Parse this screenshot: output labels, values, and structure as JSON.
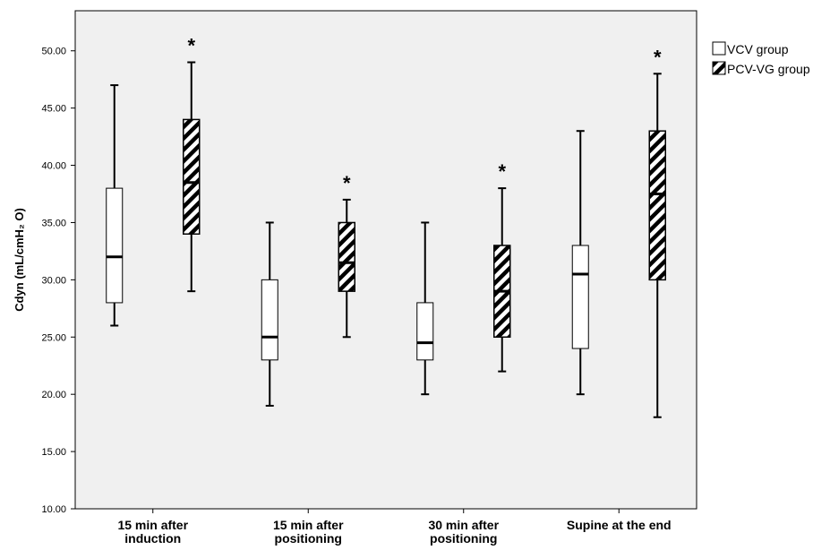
{
  "chart_data": {
    "type": "boxplot",
    "ylabel": "Cdyn (mL/cmH₂ O)",
    "ylim": [
      10,
      53.5
    ],
    "yticks": [
      "10.00",
      "15.00",
      "20.00",
      "25.00",
      "30.00",
      "35.00",
      "40.00",
      "45.00",
      "50.00"
    ],
    "ytick_values": [
      10,
      15,
      20,
      25,
      30,
      35,
      40,
      45,
      50
    ],
    "categories": [
      [
        "15 min after",
        "induction"
      ],
      [
        "15 min after",
        "positioning"
      ],
      [
        "30 min after",
        "positioning"
      ],
      [
        "Supine at the end"
      ]
    ],
    "plot_background": "#f0f0f0",
    "grid": false,
    "legend_position": "top-right, outside plot",
    "series": [
      {
        "name": "VCV group",
        "fill": "white",
        "boxes": [
          {
            "min": 26,
            "q1": 28,
            "median": 32,
            "q3": 38,
            "max": 47
          },
          {
            "min": 19,
            "q1": 23,
            "median": 25,
            "q3": 30,
            "max": 35
          },
          {
            "min": 20,
            "q1": 23,
            "median": 24.5,
            "q3": 28,
            "max": 35
          },
          {
            "min": 20,
            "q1": 24,
            "median": 30.5,
            "q3": 33,
            "max": 43
          }
        ],
        "markers": [
          "",
          "",
          "",
          ""
        ]
      },
      {
        "name": "PCV-VG group",
        "fill": "hatched",
        "boxes": [
          {
            "min": 29,
            "q1": 34,
            "median": 38.5,
            "q3": 44,
            "max": 49
          },
          {
            "min": 25,
            "q1": 29,
            "median": 31.5,
            "q3": 35,
            "max": 37
          },
          {
            "min": 22,
            "q1": 25,
            "median": 29,
            "q3": 33,
            "max": 38
          },
          {
            "min": 18,
            "q1": 30,
            "median": 37.5,
            "q3": 43,
            "max": 48
          }
        ],
        "markers": [
          "*",
          "*",
          "*",
          "*"
        ]
      }
    ]
  }
}
